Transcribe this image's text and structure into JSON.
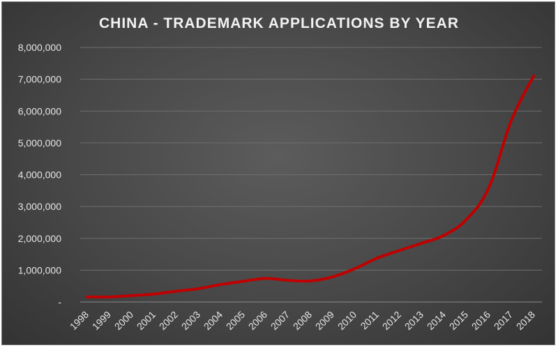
{
  "chart_data": {
    "type": "line",
    "title": "CHINA - TRADEMARK APPLICATIONS BY YEAR",
    "xlabel": "",
    "ylabel": "",
    "categories": [
      "1998",
      "1999",
      "2000",
      "2001",
      "2002",
      "2003",
      "2004",
      "2005",
      "2006",
      "2007",
      "2008",
      "2009",
      "2010",
      "2011",
      "2012",
      "2013",
      "2014",
      "2015",
      "2016",
      "2017",
      "2018"
    ],
    "series": [
      {
        "values": [
          160000,
          160000,
          200000,
          250000,
          340000,
          420000,
          550000,
          650000,
          740000,
          680000,
          660000,
          790000,
          1050000,
          1380000,
          1620000,
          1850000,
          2100000,
          2600000,
          3600000,
          5700000,
          7100000
        ],
        "color": "#c00000"
      }
    ],
    "ylim": [
      0,
      8000000
    ],
    "yticks": [
      0,
      1000000,
      2000000,
      3000000,
      4000000,
      5000000,
      6000000,
      7000000,
      8000000
    ],
    "ytick_labels": [
      "-",
      "1,000,000",
      "2,000,000",
      "3,000,000",
      "4,000,000",
      "5,000,000",
      "6,000,000",
      "7,000,000",
      "8,000,000"
    ],
    "grid": true,
    "legend": "none"
  }
}
